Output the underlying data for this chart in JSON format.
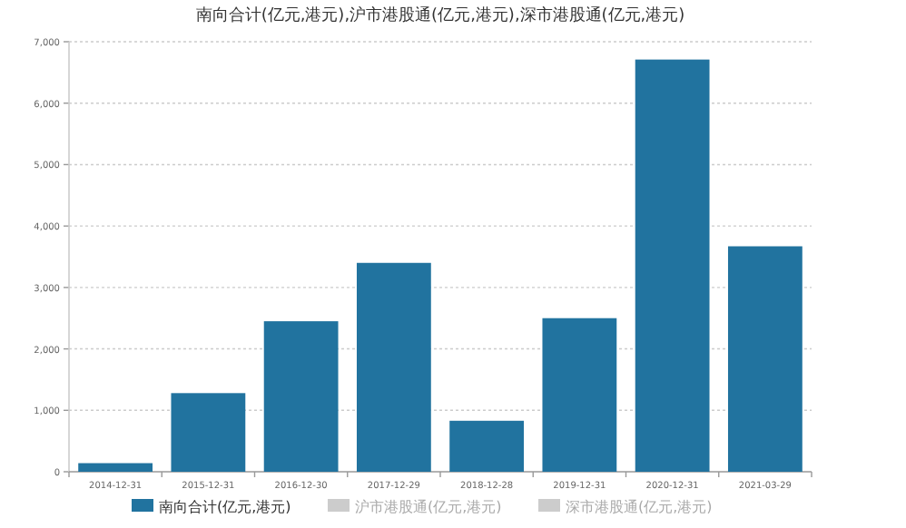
{
  "chart_data": {
    "type": "bar",
    "title": "南向合计(亿元,港元),沪市港股通(亿元,港元),深市港股通(亿元,港元)",
    "categories": [
      "2014-12-31",
      "2015-12-31",
      "2016-12-30",
      "2017-12-29",
      "2018-12-28",
      "2019-12-31",
      "2020-12-31",
      "2021-03-29"
    ],
    "series": [
      {
        "name": "南向合计(亿元,港元)",
        "color": "#21739f",
        "values": [
          140,
          1280,
          2450,
          3400,
          830,
          2500,
          6710,
          3670
        ]
      },
      {
        "name": "沪市港股通(亿元,港元)",
        "color": "#cccccc",
        "values": [
          null,
          null,
          null,
          null,
          null,
          null,
          null,
          null
        ]
      },
      {
        "name": "深市港股通(亿元,港元)",
        "color": "#cccccc",
        "values": [
          null,
          null,
          null,
          null,
          null,
          null,
          null,
          null
        ]
      }
    ],
    "ylim": [
      0,
      7000
    ],
    "yticks": [
      0,
      {
        "value": 1000,
        "label": "1,000"
      },
      {
        "value": 2000,
        "label": "2,000"
      },
      {
        "value": 3000,
        "label": "3,000"
      },
      {
        "value": 4000,
        "label": "4,000"
      },
      {
        "value": 5000,
        "label": "5,000"
      },
      {
        "value": 6000,
        "label": "6,000"
      },
      {
        "value": 7000,
        "label": "7,000"
      }
    ],
    "grid": "y",
    "legend": "bottom"
  }
}
